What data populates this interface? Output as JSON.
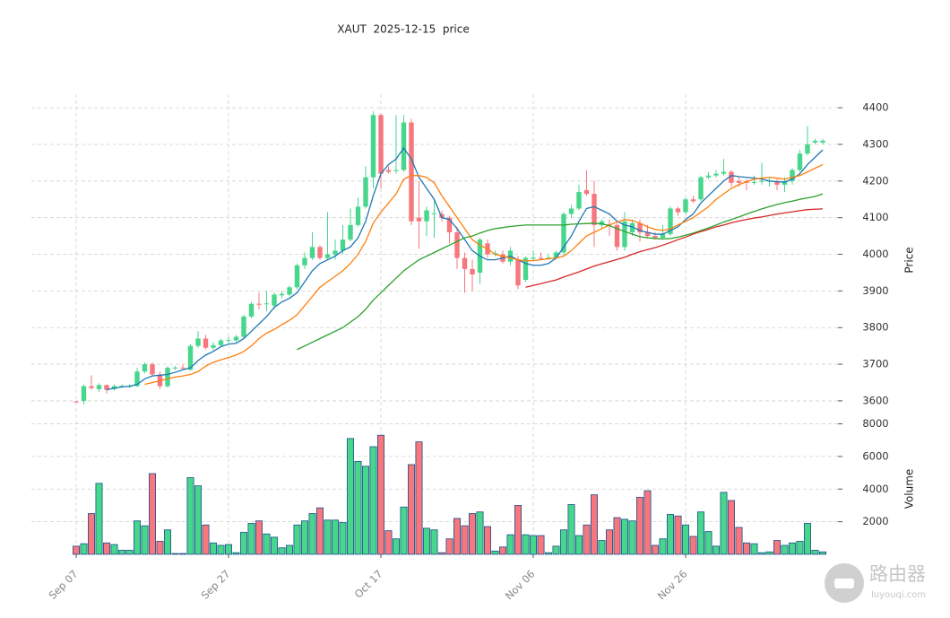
{
  "chart_data": {
    "type": "candlestick",
    "title": "XAUT  2025-12-15  price",
    "categories": [
      "Sep 07",
      null,
      null,
      null,
      null,
      null,
      null,
      null,
      null,
      null,
      null,
      null,
      null,
      null,
      null,
      null,
      null,
      null,
      null,
      null,
      "Sep 27",
      null,
      null,
      null,
      null,
      null,
      null,
      null,
      null,
      null,
      null,
      null,
      null,
      null,
      null,
      null,
      null,
      null,
      null,
      null,
      "Oct 17",
      null,
      null,
      null,
      null,
      null,
      null,
      null,
      null,
      null,
      null,
      null,
      null,
      null,
      null,
      null,
      null,
      null,
      null,
      null,
      "Nov 06",
      null,
      null,
      null,
      null,
      null,
      null,
      null,
      null,
      null,
      null,
      null,
      null,
      null,
      null,
      null,
      null,
      null,
      null,
      null,
      "Nov 26",
      null,
      null,
      null,
      null,
      null,
      null,
      null,
      null,
      null,
      null,
      null,
      null,
      null,
      null,
      null,
      null,
      null,
      null
    ],
    "open": [
      3598,
      3600,
      3640,
      3632,
      3643,
      3632,
      3639,
      3640,
      3640,
      3680,
      3700,
      3672,
      3640,
      3690,
      3691,
      3685,
      3750,
      3770,
      3745,
      3752,
      3765,
      3765,
      3775,
      3830,
      3865,
      3864,
      3860,
      3888,
      3890,
      3910,
      3970,
      3990,
      4020,
      3990,
      4000,
      4010,
      4040,
      4080,
      4130,
      4210,
      4380,
      4230,
      4228,
      4230,
      4360,
      4100,
      4090,
      4110,
      4110,
      4100,
      4060,
      3990,
      3960,
      3950,
      4030,
      4000,
      4000,
      3980,
      3985,
      3930,
      3988,
      3990,
      3990,
      3990,
      4005,
      4110,
      4125,
      4175,
      4165,
      4080,
      4082,
      4080,
      4020,
      4060,
      4085,
      4060,
      4050,
      4045,
      4055,
      4125,
      4115,
      4150,
      4150,
      4210,
      4215,
      4220,
      4225,
      4200,
      4200,
      4195,
      4198,
      4200,
      4200,
      4190,
      4200,
      4230,
      4275,
      4305,
      4305
    ],
    "high": [
      3600,
      3645,
      3670,
      3648,
      3645,
      3645,
      3645,
      3645,
      3690,
      3705,
      3705,
      3680,
      3695,
      3695,
      3700,
      3755,
      3790,
      3780,
      3760,
      3770,
      3775,
      3780,
      3835,
      3870,
      3895,
      3900,
      3895,
      3900,
      3915,
      3975,
      4005,
      4060,
      4025,
      4115,
      4040,
      4080,
      4125,
      4155,
      4240,
      4390,
      4385,
      4240,
      4380,
      4380,
      4370,
      4200,
      4130,
      4150,
      4120,
      4105,
      4075,
      4005,
      3985,
      4045,
      4040,
      4010,
      4010,
      4020,
      3995,
      3995,
      4010,
      4005,
      4000,
      4010,
      4115,
      4135,
      4190,
      4230,
      4200,
      4095,
      4095,
      4085,
      4115,
      4095,
      4095,
      4080,
      4060,
      4080,
      4130,
      4130,
      4155,
      4160,
      4215,
      4225,
      4230,
      4260,
      4230,
      4210,
      4205,
      4215,
      4250,
      4210,
      4205,
      4210,
      4235,
      4285,
      4350,
      4315,
      4315
    ],
    "low": [
      3595,
      3590,
      3630,
      3625,
      3620,
      3628,
      3636,
      3636,
      3638,
      3675,
      3668,
      3632,
      3636,
      3684,
      3686,
      3682,
      3745,
      3740,
      3738,
      3748,
      3758,
      3760,
      3770,
      3825,
      3850,
      3845,
      3850,
      3880,
      3885,
      3905,
      3960,
      3985,
      3985,
      3985,
      3985,
      4000,
      4035,
      4075,
      4125,
      4180,
      4180,
      4220,
      4220,
      4225,
      4080,
      4015,
      4050,
      4045,
      4090,
      4030,
      3960,
      3895,
      3900,
      3920,
      3990,
      3995,
      3975,
      3970,
      3905,
      3925,
      3980,
      3985,
      3985,
      3985,
      3995,
      4100,
      4120,
      4160,
      4020,
      4070,
      4050,
      4010,
      4010,
      4050,
      4035,
      4045,
      4040,
      4040,
      4050,
      4105,
      4110,
      4140,
      4145,
      4205,
      4210,
      4215,
      4185,
      4185,
      4175,
      4190,
      4190,
      4185,
      4175,
      4170,
      4190,
      4225,
      4270,
      4300,
      4300
    ],
    "close": [
      3597,
      3640,
      3635,
      3643,
      3630,
      3640,
      3641,
      3640,
      3680,
      3700,
      3672,
      3640,
      3690,
      3691,
      3690,
      3750,
      3770,
      3745,
      3752,
      3765,
      3766,
      3775,
      3830,
      3865,
      3864,
      3866,
      3890,
      3892,
      3910,
      3970,
      3990,
      4020,
      3990,
      4000,
      4010,
      4040,
      4080,
      4130,
      4210,
      4380,
      4220,
      4225,
      4230,
      4360,
      4090,
      4090,
      4120,
      4112,
      4100,
      4060,
      3990,
      3960,
      3945,
      4040,
      4000,
      4003,
      3980,
      4010,
      3915,
      3990,
      3991,
      3989,
      3991,
      4005,
      4110,
      4125,
      4170,
      4165,
      4080,
      4090,
      4080,
      4020,
      4090,
      4085,
      4060,
      4050,
      4045,
      4055,
      4125,
      4115,
      4150,
      4145,
      4210,
      4215,
      4220,
      4225,
      4195,
      4195,
      4195,
      4197,
      4200,
      4201,
      4190,
      4200,
      4230,
      4275,
      4300,
      4310,
      4310
    ],
    "volume": [
      500,
      650,
      2500,
      4350,
      700,
      600,
      250,
      250,
      2050,
      1750,
      4950,
      800,
      1500,
      50,
      50,
      4700,
      4200,
      1800,
      700,
      550,
      600,
      100,
      1350,
      1900,
      2050,
      1250,
      1050,
      400,
      550,
      1800,
      2050,
      2500,
      2850,
      2100,
      2100,
      1950,
      7100,
      5700,
      5400,
      6600,
      7300,
      1450,
      950,
      2900,
      5500,
      6900,
      1600,
      1500,
      100,
      950,
      2200,
      1750,
      2500,
      2600,
      1700,
      200,
      450,
      1200,
      3000,
      1200,
      1150,
      1150,
      100,
      500,
      1500,
      3050,
      1150,
      1800,
      3650,
      850,
      1500,
      2250,
      2150,
      2050,
      3500,
      3900,
      550,
      950,
      2450,
      2350,
      1800,
      1100,
      2600,
      1400,
      500,
      3800,
      3300,
      1650,
      700,
      650,
      100,
      150,
      850,
      550,
      700,
      800,
      1900,
      250,
      150
    ],
    "up_color": "#46d68c",
    "down_color": "#f6777d",
    "volume_edge_color": "#1f4f8c",
    "series": [
      {
        "color": "#1f77b4",
        "values": [
          null,
          null,
          null,
          null,
          3630,
          3635,
          3638,
          3640,
          3645,
          3660,
          3668,
          3670,
          3672,
          3678,
          3685,
          3690,
          3710,
          3725,
          3735,
          3748,
          3755,
          3757,
          3770,
          3790,
          3810,
          3830,
          3855,
          3870,
          3880,
          3895,
          3925,
          3955,
          3975,
          3985,
          3995,
          4010,
          4020,
          4045,
          4090,
          4160,
          4220,
          4245,
          4260,
          4290,
          4260,
          4210,
          4180,
          4150,
          4100,
          4095,
          4070,
          4040,
          4010,
          3995,
          3985,
          3985,
          3990,
          3995,
          3985,
          3975,
          3970,
          3970,
          3975,
          3990,
          4020,
          4050,
          4090,
          4125,
          4130,
          4120,
          4110,
          4090,
          4080,
          4075,
          4065,
          4060,
          4055,
          4055,
          4065,
          4075,
          4095,
          4110,
          4140,
          4160,
          4180,
          4200,
          4215,
          4212,
          4210,
          4208,
          4205,
          4200,
          4198,
          4197,
          4205,
          4220,
          4245,
          4265,
          4285
        ]
      },
      {
        "color": "#ff7f0e",
        "values": [
          null,
          null,
          null,
          null,
          null,
          null,
          null,
          null,
          null,
          3645,
          3650,
          3655,
          3660,
          3665,
          3668,
          3672,
          3680,
          3695,
          3705,
          3712,
          3718,
          3725,
          3735,
          3750,
          3770,
          3785,
          3795,
          3808,
          3820,
          3835,
          3860,
          3885,
          3910,
          3925,
          3940,
          3955,
          3975,
          4000,
          4035,
          4085,
          4115,
          4140,
          4165,
          4205,
          4215,
          4215,
          4210,
          4195,
          4160,
          4130,
          4100,
          4070,
          4040,
          4025,
          4015,
          4000,
          3995,
          3990,
          3985,
          3982,
          3983,
          3985,
          3988,
          3990,
          3995,
          4010,
          4030,
          4050,
          4060,
          4070,
          4080,
          4088,
          4095,
          4092,
          4085,
          4075,
          4068,
          4065,
          4070,
          4080,
          4090,
          4100,
          4115,
          4130,
          4150,
          4165,
          4180,
          4190,
          4198,
          4205,
          4208,
          4210,
          4208,
          4205,
          4210,
          4215,
          4225,
          4235,
          4245
        ]
      },
      {
        "color": "#2ca02c",
        "values": [
          null,
          null,
          null,
          null,
          null,
          null,
          null,
          null,
          null,
          null,
          null,
          null,
          null,
          null,
          null,
          null,
          null,
          null,
          null,
          null,
          null,
          null,
          null,
          null,
          null,
          null,
          null,
          null,
          null,
          3740,
          3750,
          3760,
          3770,
          3780,
          3790,
          3800,
          3815,
          3830,
          3850,
          3875,
          3895,
          3915,
          3935,
          3955,
          3970,
          3985,
          3995,
          4005,
          4015,
          4025,
          4035,
          4045,
          4050,
          4058,
          4065,
          4070,
          4073,
          4076,
          4078,
          4080,
          4080,
          4080,
          4080,
          4080,
          4080,
          4082,
          4083,
          4084,
          4085,
          4083,
          4078,
          4070,
          4062,
          4055,
          4048,
          4045,
          4043,
          4042,
          4043,
          4047,
          4052,
          4058,
          4065,
          4072,
          4080,
          4088,
          4095,
          4102,
          4110,
          4117,
          4124,
          4130,
          4136,
          4141,
          4145,
          4150,
          4154,
          4158,
          4165
        ]
      },
      {
        "color": "#d62728",
        "values": [
          null,
          null,
          null,
          null,
          null,
          null,
          null,
          null,
          null,
          null,
          null,
          null,
          null,
          null,
          null,
          null,
          null,
          null,
          null,
          null,
          null,
          null,
          null,
          null,
          null,
          null,
          null,
          null,
          null,
          null,
          null,
          null,
          null,
          null,
          null,
          null,
          null,
          null,
          null,
          null,
          null,
          null,
          null,
          null,
          null,
          null,
          null,
          null,
          null,
          null,
          null,
          null,
          null,
          null,
          null,
          null,
          null,
          null,
          null,
          3910,
          3915,
          3920,
          3925,
          3930,
          3938,
          3945,
          3952,
          3960,
          3968,
          3974,
          3980,
          3986,
          3992,
          4000,
          4007,
          4013,
          4018,
          4025,
          4032,
          4040,
          4047,
          4055,
          4062,
          4068,
          4075,
          4080,
          4086,
          4091,
          4095,
          4099,
          4102,
          4106,
          4110,
          4113,
          4116,
          4119,
          4122,
          4123,
          4124
        ]
      }
    ],
    "ylim": [
      3568,
      4437
    ],
    "yticks": [
      3600,
      3700,
      3800,
      3900,
      4000,
      4100,
      4200,
      4300,
      4400
    ],
    "y_label": "Price",
    "volume_ylim": [
      0,
      8580
    ],
    "volume_yticks": [
      2000,
      4000,
      6000,
      8000
    ],
    "volume_label": "Volume",
    "grid": true,
    "watermark": {
      "text": "路由器",
      "url": "luyouqi.com"
    }
  }
}
